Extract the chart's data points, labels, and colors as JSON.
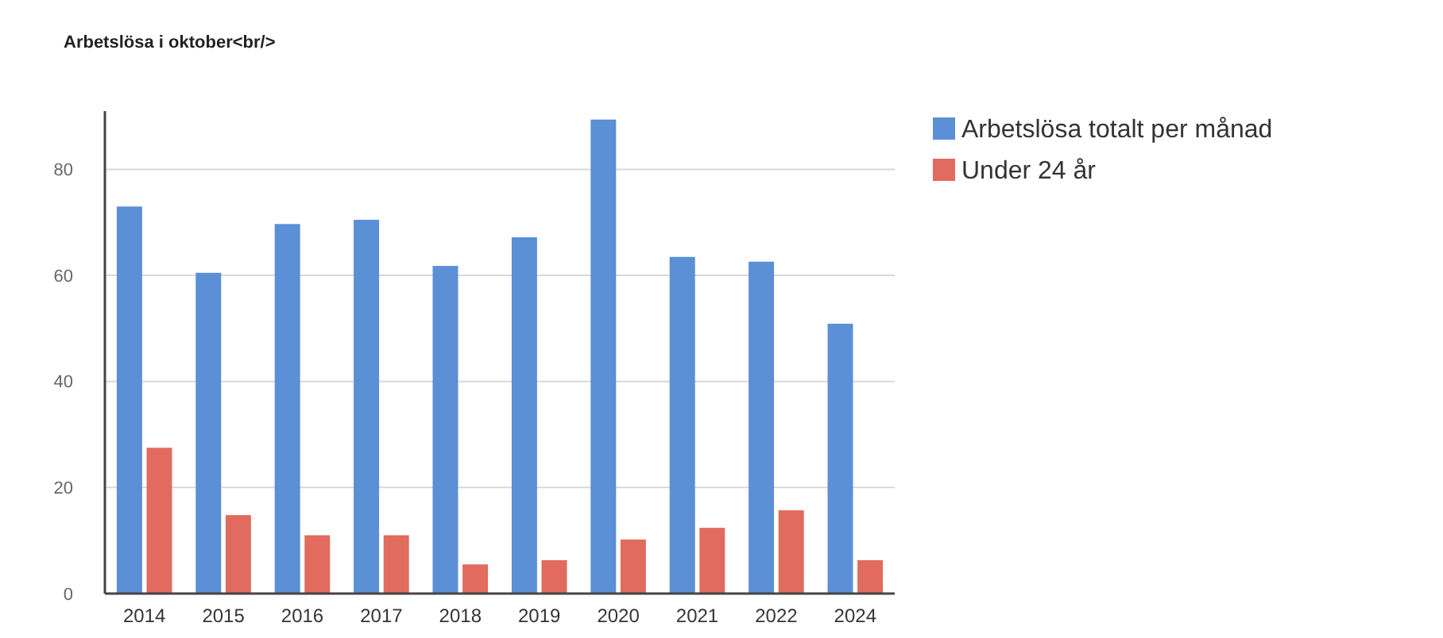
{
  "chart_data": {
    "type": "bar",
    "title": "Arbetslösa i oktober<br/>",
    "categories": [
      "2014",
      "2015",
      "2016",
      "2017",
      "2018",
      "2019",
      "2020",
      "2021",
      "2022",
      "2024"
    ],
    "series": [
      {
        "name": "Arbetslösa totalt per månad",
        "color": "#5b8fd6",
        "values": [
          73,
          60.5,
          69.7,
          70.5,
          61.8,
          67.2,
          89.4,
          63.5,
          62.6,
          50.9
        ]
      },
      {
        "name": "Under 24 år",
        "color": "#e06b5e",
        "values": [
          27.5,
          14.8,
          11,
          11,
          5.5,
          6.3,
          10.2,
          12.4,
          15.7,
          6.3
        ]
      }
    ],
    "ylim": [
      0,
      91
    ],
    "yticks": [
      0,
      20,
      40,
      60,
      80
    ],
    "grid": "y",
    "legend": "top right"
  }
}
